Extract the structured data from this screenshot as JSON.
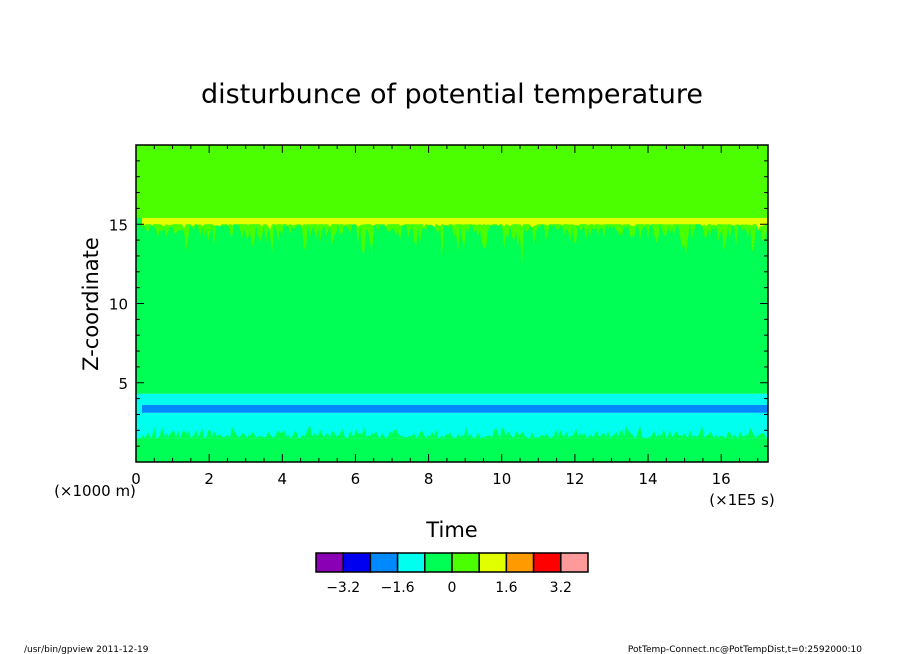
{
  "chart_data": {
    "type": "heatmap",
    "title": "disturbunce of potential temperature",
    "xlabel": "Time",
    "ylabel": "Z-coordinate",
    "x_unit_label": "(×1E5 s)",
    "y_unit_label": "(×1000 m)",
    "xlim": [
      0,
      17.28
    ],
    "ylim": [
      0,
      20
    ],
    "xticks": [
      0,
      2,
      4,
      6,
      8,
      10,
      12,
      14,
      16
    ],
    "yticks": [
      5,
      10,
      15
    ],
    "bands": [
      {
        "z_from": 15.4,
        "z_to": 20,
        "level": "0.8 to 1.6"
      },
      {
        "z_from": 15.0,
        "z_to": 15.4,
        "level": "1.6 to 2.4"
      },
      {
        "z_from": 4.3,
        "z_to": 15.0,
        "level": "0 to 0.8"
      },
      {
        "z_from": 3.6,
        "z_to": 4.3,
        "level": "-0.8 to 0"
      },
      {
        "z_from": 3.1,
        "z_to": 3.6,
        "level": "-1.6 to -0.8"
      },
      {
        "z_from": 1.5,
        "z_to": 3.1,
        "level": "-0.8 to 0"
      },
      {
        "z_from": 0,
        "z_to": 1.5,
        "level": "0 to 0.8"
      }
    ],
    "colorbar": {
      "colors": [
        "#8a00b4",
        "#0000f0",
        "#0088ff",
        "#00ffee",
        "#00ff55",
        "#4cff00",
        "#e2ff00",
        "#ff9a00",
        "#ff0000",
        "#ff9a9a"
      ],
      "tick_labels": [
        "−3.2",
        "−1.6",
        "0",
        "1.6",
        "3.2"
      ]
    }
  },
  "footer": {
    "left": "/usr/bin/gpview   2011-12-19",
    "right": "PotTemp-Connect.nc@PotTempDist,t=0:2592000:10"
  }
}
